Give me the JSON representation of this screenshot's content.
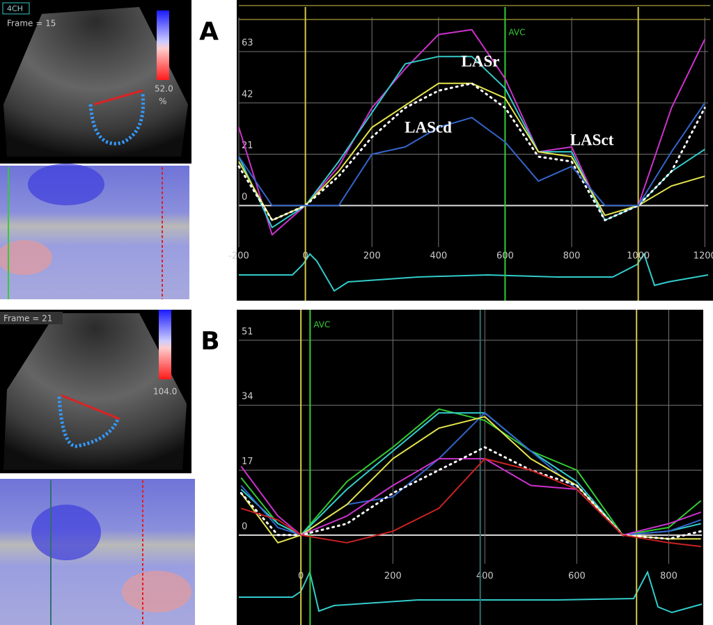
{
  "images": [
    {
      "view": "4CH",
      "frame": "Frame = 15",
      "scale_value": "52.0",
      "unit": "%"
    },
    {
      "frame": "Frame = 21",
      "scale_value": "104.0"
    }
  ],
  "chart_data": [
    {
      "type": "line",
      "panel_label": "A",
      "x": [
        -200,
        -100,
        0,
        100,
        200,
        300,
        400,
        500,
        600,
        700,
        800,
        900,
        1000,
        1100,
        1200
      ],
      "xlim": [
        -200,
        1210
      ],
      "ylim": [
        -17,
        77
      ],
      "xticks": [
        -200,
        0,
        200,
        400,
        600,
        800,
        1000,
        1200
      ],
      "yticks": [
        0,
        21,
        42,
        63
      ],
      "grid": true,
      "series": [
        {
          "color": "#cc33cc",
          "values": [
            32,
            -12,
            0,
            16,
            40,
            56,
            70,
            72,
            52,
            22,
            24,
            -6,
            0,
            40,
            68
          ]
        },
        {
          "color": "#33cccc",
          "values": [
            20,
            -9,
            0,
            18,
            38,
            58,
            61,
            61,
            48,
            22,
            22,
            -6,
            0,
            14,
            23
          ]
        },
        {
          "color": "#e6e64d",
          "values": [
            18,
            -6,
            0,
            14,
            32,
            41,
            50,
            50,
            44,
            22,
            20,
            -4,
            0,
            8,
            12
          ]
        },
        {
          "color": "#ffffff",
          "dashed": true,
          "values": [
            16,
            -6,
            0,
            12,
            28,
            40,
            47,
            50,
            40,
            20,
            18,
            -6,
            0,
            14,
            40
          ]
        },
        {
          "color": "#3366cc",
          "values": [
            20,
            0,
            0,
            0,
            21,
            24,
            32,
            36,
            26,
            10,
            16,
            0,
            0,
            22,
            42
          ]
        }
      ],
      "vlines": [
        {
          "x": 0,
          "color": "#d4c84a"
        },
        {
          "x": 1000,
          "color": "#d4c84a"
        },
        {
          "x": 600,
          "color": "#33cc33",
          "label": "AVC"
        }
      ],
      "annotations": [
        "LASr",
        "LAScd",
        "LASct"
      ]
    },
    {
      "type": "line",
      "panel_label": "B",
      "x": [
        -130,
        -50,
        0,
        100,
        200,
        300,
        400,
        500,
        600,
        700,
        800,
        870
      ],
      "xlim": [
        -135,
        872
      ],
      "ylim": [
        -7.5,
        59
      ],
      "xticks": [
        0,
        200,
        400,
        600,
        800
      ],
      "yticks": [
        0,
        17,
        34,
        51
      ],
      "grid": true,
      "series": [
        {
          "color": "#33cc33",
          "values": [
            15,
            3,
            0,
            14,
            23,
            33,
            30,
            22,
            17,
            0,
            2,
            9
          ]
        },
        {
          "color": "#33cccc",
          "values": [
            12,
            3,
            0,
            12,
            22,
            32,
            32,
            22,
            14,
            0,
            1,
            3
          ]
        },
        {
          "color": "#3366cc",
          "values": [
            13,
            2,
            0,
            8,
            10,
            20,
            32,
            22,
            12,
            0,
            1,
            4
          ]
        },
        {
          "color": "#e6e64d",
          "values": [
            11,
            -2,
            0,
            8,
            20,
            28,
            31,
            20,
            13,
            0,
            -1,
            -1
          ]
        },
        {
          "color": "#cc33cc",
          "values": [
            18,
            5,
            0,
            5,
            13,
            20,
            20,
            13,
            12,
            0,
            3,
            6
          ]
        },
        {
          "color": "#ffffff",
          "dashed": true,
          "values": [
            11,
            0,
            0,
            3,
            11,
            17,
            23,
            17,
            13,
            0,
            -1,
            1
          ]
        },
        {
          "color": "#cc2222",
          "values": [
            7,
            4,
            0,
            -2,
            1,
            7,
            20,
            17,
            12,
            0,
            -2,
            -3
          ]
        }
      ],
      "vlines": [
        {
          "x": 0,
          "color": "#d4c84a"
        },
        {
          "x": 730,
          "color": "#d4c84a"
        },
        {
          "x": 390,
          "color": "#2f6f6f"
        },
        {
          "x": 20,
          "color": "#33cc33",
          "label": "AVC"
        }
      ]
    }
  ]
}
